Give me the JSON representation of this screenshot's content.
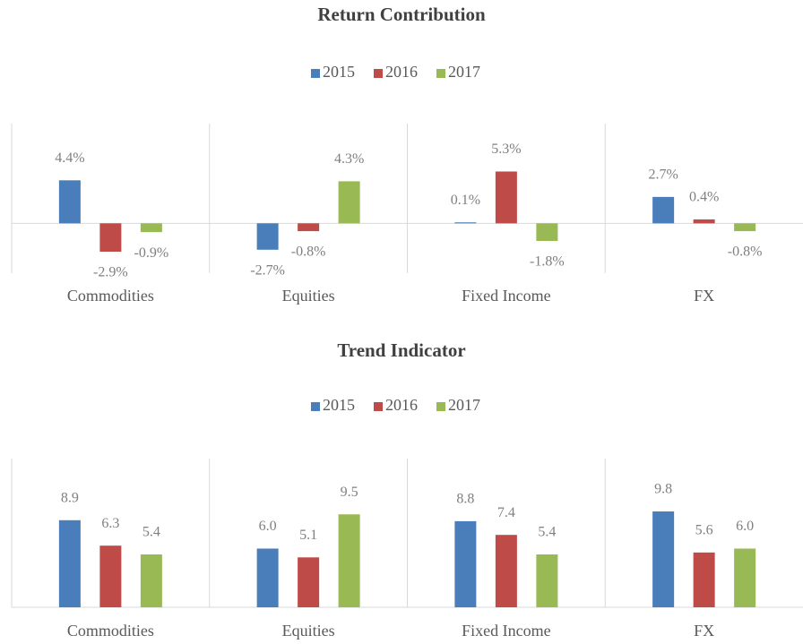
{
  "chart_data": [
    {
      "type": "bar",
      "title": "Return Contribution",
      "categories": [
        "Commodities",
        "Equities",
        "Fixed Income",
        "FX"
      ],
      "series": [
        {
          "name": "2015",
          "color": "#4a7ebb",
          "values": [
            4.4,
            -2.7,
            0.1,
            2.7
          ],
          "value_labels": [
            "4.4%",
            "-2.7%",
            "0.1%",
            "2.7%"
          ]
        },
        {
          "name": "2016",
          "color": "#be4b48",
          "values": [
            -2.9,
            -0.8,
            5.3,
            0.4
          ],
          "value_labels": [
            "-2.9%",
            "-0.8%",
            "5.3%",
            "0.4%"
          ]
        },
        {
          "name": "2017",
          "color": "#98b954",
          "values": [
            -0.9,
            4.3,
            -1.8,
            -0.8
          ],
          "value_labels": [
            "-0.9%",
            "4.3%",
            "-1.8%",
            "-0.8%"
          ]
        }
      ],
      "ylim": [
        -5.1,
        10.2
      ]
    },
    {
      "type": "bar",
      "title": "Trend Indicator",
      "categories": [
        "Commodities",
        "Equities",
        "Fixed Income",
        "FX"
      ],
      "series": [
        {
          "name": "2015",
          "color": "#4a7ebb",
          "values": [
            8.9,
            6.0,
            8.8,
            9.8
          ],
          "value_labels": [
            "8.9",
            "6.0",
            "8.8",
            "9.8"
          ]
        },
        {
          "name": "2016",
          "color": "#be4b48",
          "values": [
            6.3,
            5.1,
            7.4,
            5.6
          ],
          "value_labels": [
            "6.3",
            "5.1",
            "7.4",
            "5.6"
          ]
        },
        {
          "name": "2017",
          "color": "#98b954",
          "values": [
            5.4,
            9.5,
            5.4,
            6.0
          ],
          "value_labels": [
            "5.4",
            "9.5",
            "5.4",
            "6.0"
          ]
        }
      ],
      "ylim": [
        0,
        15.2
      ]
    }
  ]
}
